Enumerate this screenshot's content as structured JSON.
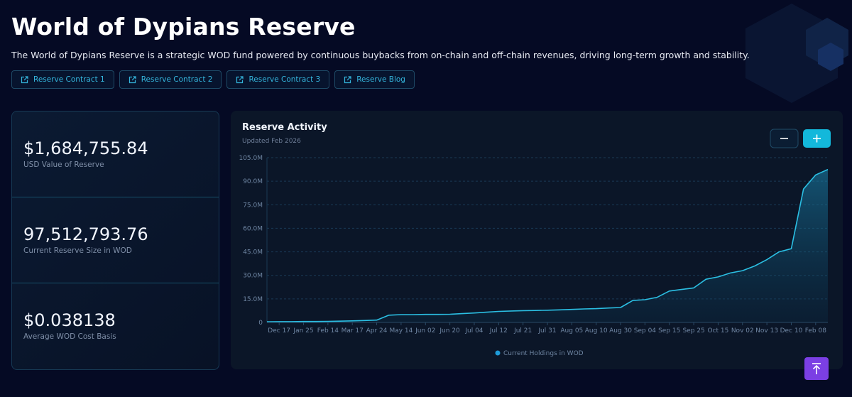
{
  "header": {
    "title": "World of Dypians Reserve",
    "description": "The World of Dypians Reserve is a strategic WOD fund powered by continuous buybacks from on-chain and off-chain revenues, driving long-term growth and stability."
  },
  "links": [
    "Reserve Contract 1",
    "Reserve Contract 2",
    "Reserve Contract 3",
    "Reserve Blog"
  ],
  "stats": [
    {
      "value": "$1,684,755.84",
      "label": "USD Value of Reserve"
    },
    {
      "value": "97,512,793.76",
      "label": "Current Reserve Size in WOD"
    },
    {
      "value": "$0.038138",
      "label": "Average WOD Cost Basis"
    }
  ],
  "chart_data": {
    "type": "area",
    "title": "Reserve Activity",
    "subtitle": "Updated Feb 2026",
    "categories": [
      null,
      "Dec 17",
      null,
      "Jan 25",
      null,
      "Feb 14",
      null,
      "Mar 17",
      null,
      "Apr 24",
      null,
      "May 14",
      null,
      "Jun 02",
      null,
      "Jun 20",
      null,
      "Jul 04",
      null,
      "Jul 12",
      null,
      "Jul 21",
      null,
      "Jul 31",
      null,
      "Aug 05",
      null,
      "Aug 10",
      null,
      "Aug 30",
      null,
      "Sep 04",
      null,
      "Sep 15",
      null,
      "Sep 25",
      null,
      "Oct 15",
      null,
      "Nov 02",
      null,
      "Nov 13",
      null,
      "Dec 10",
      null,
      "Feb 08",
      null
    ],
    "series": [
      {
        "name": "Current Holdings in WOD",
        "color": "#2bbfe3",
        "values": [
          400000,
          500000,
          500000,
          600000,
          600000,
          700000,
          800000,
          1000000,
          1200000,
          1500000,
          4600000,
          5000000,
          5000000,
          5100000,
          5100000,
          5200000,
          5600000,
          6000000,
          6500000,
          7000000,
          7300000,
          7500000,
          7600000,
          7800000,
          8000000,
          8300000,
          8600000,
          8800000,
          9200000,
          9500000,
          14000000,
          14500000,
          16000000,
          20000000,
          21000000,
          22000000,
          27500000,
          29000000,
          31500000,
          33000000,
          36000000,
          40000000,
          45000000,
          47000000,
          85000000,
          94000000,
          97500000
        ]
      }
    ],
    "ylim": [
      0,
      105000000
    ],
    "yticks": [
      0,
      {
        "value": 15000000,
        "label": "15.0M"
      },
      {
        "value": 30000000,
        "label": "30.0M"
      },
      {
        "value": 45000000,
        "label": "45.0M"
      },
      {
        "value": 60000000,
        "label": "60.0M"
      },
      {
        "value": 75000000,
        "label": "75.0M"
      },
      {
        "value": 90000000,
        "label": "90.0M"
      },
      {
        "value": 105000000,
        "label": "105.0M"
      }
    ],
    "grid": true
  }
}
